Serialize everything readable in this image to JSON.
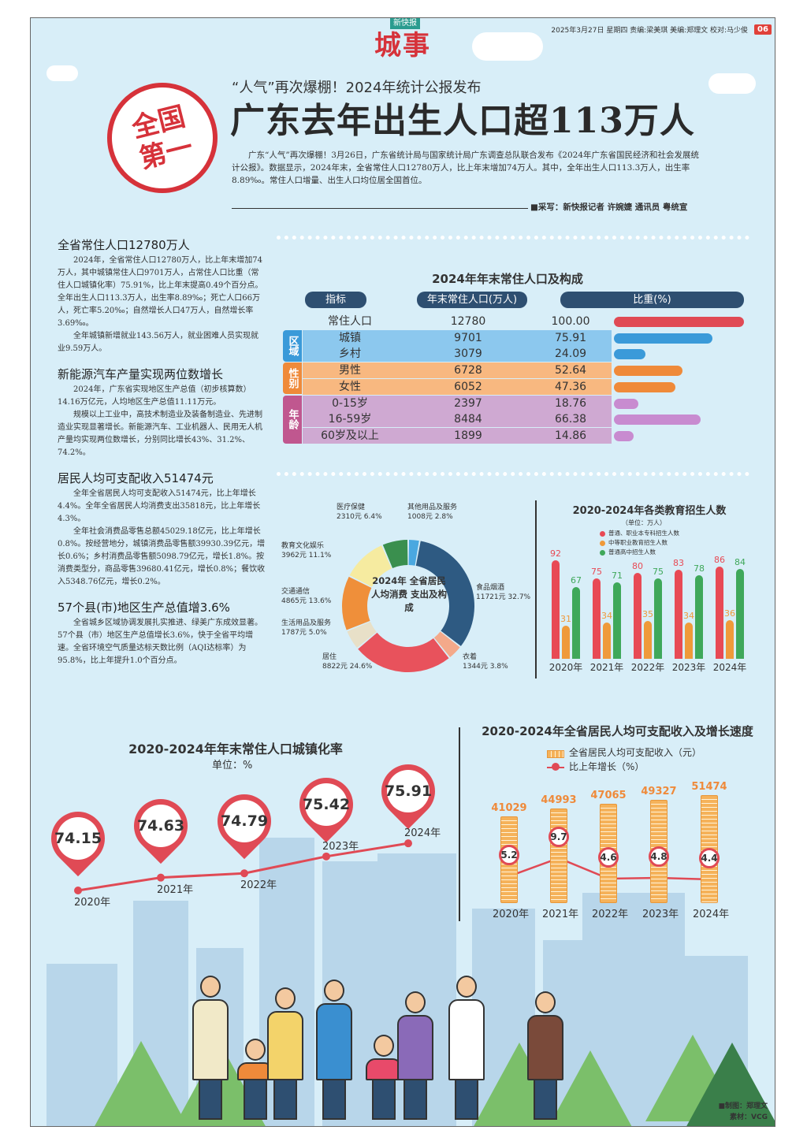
{
  "header": {
    "brand": "新快报",
    "section": "城事",
    "meta": "2025年3月27日 星期四 责编:梁美琪 美编:郑理文 校对:马少俊",
    "page_number": "06"
  },
  "badge": {
    "line1": "全国",
    "line2": "第一"
  },
  "headline": {
    "subtitle": "“人气”再次爆棚！2024年统计公报发布",
    "title": "广东去年出生人口超113万人",
    "lede": "广东“人气”再次爆棚！3月26日，广东省统计局与国家统计局广东调查总队联合发布《2024年广东省国民经济和社会发展统计公报》。数据显示，2024年末，全省常住人口12780万人，比上年末增加74万人。其中，全年出生人口113.3万人，出生率8.89‰。常住人口增量、出生人口均位居全国首位。",
    "byline": "■采写：新快报记者 许婉婕 通讯员 粤统宣"
  },
  "articles": [
    {
      "heading": "全省常住人口12780万人",
      "paragraphs": [
        "2024年，全省常住人口12780万人，比上年末增加74万人，其中城镇常住人口9701万人，占常住人口比重（常住人口城镇化率）75.91%，比上年末提高0.49个百分点。全年出生人口113.3万人，出生率8.89‰；死亡人口66万人，死亡率5.20‰；自然增长人口47万人，自然增长率3.69‰。",
        "全年城镇新增就业143.56万人，就业困难人员实现就业9.59万人。"
      ]
    },
    {
      "heading": "新能源汽车产量实现两位数增长",
      "paragraphs": [
        "2024年，广东省实现地区生产总值（初步核算数）14.16万亿元，人均地区生产总值11.11万元。",
        "规模以上工业中，高技术制造业及装备制造业、先进制造业实现显著增长。新能源汽车、工业机器人、民用无人机产量均实现两位数增长，分别同比增长43%、31.2%、74.2%。"
      ]
    },
    {
      "heading": "居民人均可支配收入51474元",
      "paragraphs": [
        "全年全省居民人均可支配收入51474元，比上年增长4.4%。全年全省居民人均消费支出35818元，比上年增长4.3%。",
        "全年社会消费品零售总额45029.18亿元，比上年增长0.8%。按经营地分，城镇消费品零售额39930.39亿元，增长0.6%；乡村消费品零售额5098.79亿元，增长1.8%。按消费类型分，商品零售39680.41亿元，增长0.8%；餐饮收入5348.76亿元，增长0.2%。"
      ]
    },
    {
      "heading": "57个县(市)地区生产总值增3.6%",
      "paragraphs": [
        "全省城乡区域协调发展扎实推进、绿美广东成效显著。57个县（市）地区生产总值增长3.6%，快于全省平均增速。全省环境空气质量达标天数比例（AQI达标率）为95.8%，比上年提升1.0个百分点。"
      ]
    }
  ],
  "chart_data": [
    {
      "type": "table",
      "title": "2024年年末常住人口及构成",
      "columns": [
        "指标",
        "年末常住人口(万人)",
        "比重(%)"
      ],
      "total": {
        "label": "常住人口",
        "value": "12780",
        "share": "100.00"
      },
      "groups": [
        {
          "name": "区域",
          "color": "#8cc8ee",
          "label_color": "#3a9ad9",
          "rows": [
            {
              "label": "城镇",
              "value": "9701",
              "share": "75.91"
            },
            {
              "label": "乡村",
              "value": "3079",
              "share": "24.09"
            }
          ]
        },
        {
          "name": "性别",
          "color": "#f8b880",
          "label_color": "#ef8a3a",
          "rows": [
            {
              "label": "男性",
              "value": "6728",
              "share": "52.64"
            },
            {
              "label": "女性",
              "value": "6052",
              "share": "47.36"
            }
          ]
        },
        {
          "name": "年龄",
          "color": "#cfa9d2",
          "label_color": "#c0578f",
          "rows": [
            {
              "label": "0-15岁",
              "value": "2397",
              "share": "18.76"
            },
            {
              "label": "16-59岁",
              "value": "8484",
              "share": "66.38"
            },
            {
              "label": "60岁及以上",
              "value": "1899",
              "share": "14.86"
            }
          ]
        }
      ],
      "bar_colors": {
        "total": "#e04a55",
        "区域": "#3a9ad9",
        "性别": "#ef8a3a",
        "年龄": "#c88bd0"
      }
    },
    {
      "type": "pie",
      "title": "2024年 全省居民人均消费 支出及构成",
      "unit": "元",
      "slices": [
        {
          "name": "其他用品及服务",
          "value": 1008,
          "pct": "2.8%",
          "color": "#4aa8e0"
        },
        {
          "name": "食品烟酒",
          "value": 11721,
          "pct": "32.7%",
          "color": "#2e5a82"
        },
        {
          "name": "衣着",
          "value": 1344,
          "pct": "3.8%",
          "color": "#f4a98a"
        },
        {
          "name": "居住",
          "value": 8822,
          "pct": "24.6%",
          "color": "#e8525c"
        },
        {
          "name": "生活用品及服务",
          "value": 1787,
          "pct": "5.0%",
          "color": "#e8e0c8"
        },
        {
          "name": "交通通信",
          "value": 4865,
          "pct": "13.6%",
          "color": "#ef8f3a"
        },
        {
          "name": "教育文化娱乐",
          "value": 3962,
          "pct": "11.1%",
          "color": "#f6eba0"
        },
        {
          "name": "医疗保健",
          "value": 2310,
          "pct": "6.4%",
          "color": "#3a8f4e"
        }
      ]
    },
    {
      "type": "bar",
      "title": "2020-2024年各类教育招生人数",
      "unit": "（单位：万人）",
      "categories": [
        "2020年",
        "2021年",
        "2022年",
        "2023年",
        "2024年"
      ],
      "series": [
        {
          "name": "普通、职业本专科招生人数",
          "values": [
            92,
            75,
            80,
            83,
            86
          ],
          "color": "#e84a55"
        },
        {
          "name": "中等职业教育招生人数",
          "values": [
            31,
            34,
            35,
            34,
            36
          ],
          "color": "#ef9a3a"
        },
        {
          "name": "普通高中招生人数",
          "values": [
            67,
            71,
            75,
            78,
            84
          ],
          "color": "#3fa85a"
        }
      ]
    },
    {
      "type": "line",
      "title": "2020-2024年年末常住人口城镇化率",
      "unit": "单位：%",
      "categories": [
        "2020年",
        "2021年",
        "2022年",
        "2023年",
        "2024年"
      ],
      "values": [
        74.15,
        74.63,
        74.79,
        75.42,
        75.91
      ],
      "color": "#e04a55"
    },
    {
      "type": "bar",
      "title": "2020-2024年全省居民人均可支配收入及增长速度",
      "categories": [
        "2020年",
        "2021年",
        "2022年",
        "2023年",
        "2024年"
      ],
      "series": [
        {
          "name": "全省居民人均可支配收入（元）",
          "values": [
            41029,
            44993,
            47065,
            49327,
            51474
          ],
          "color": "#f5b25a"
        },
        {
          "name": "比上年增长（%）",
          "values": [
            5.2,
            9.7,
            4.6,
            4.8,
            4.4
          ],
          "color": "#e04a55"
        }
      ]
    }
  ],
  "credits": {
    "design": "■制图：郑理文",
    "source": "素材：VCG"
  }
}
